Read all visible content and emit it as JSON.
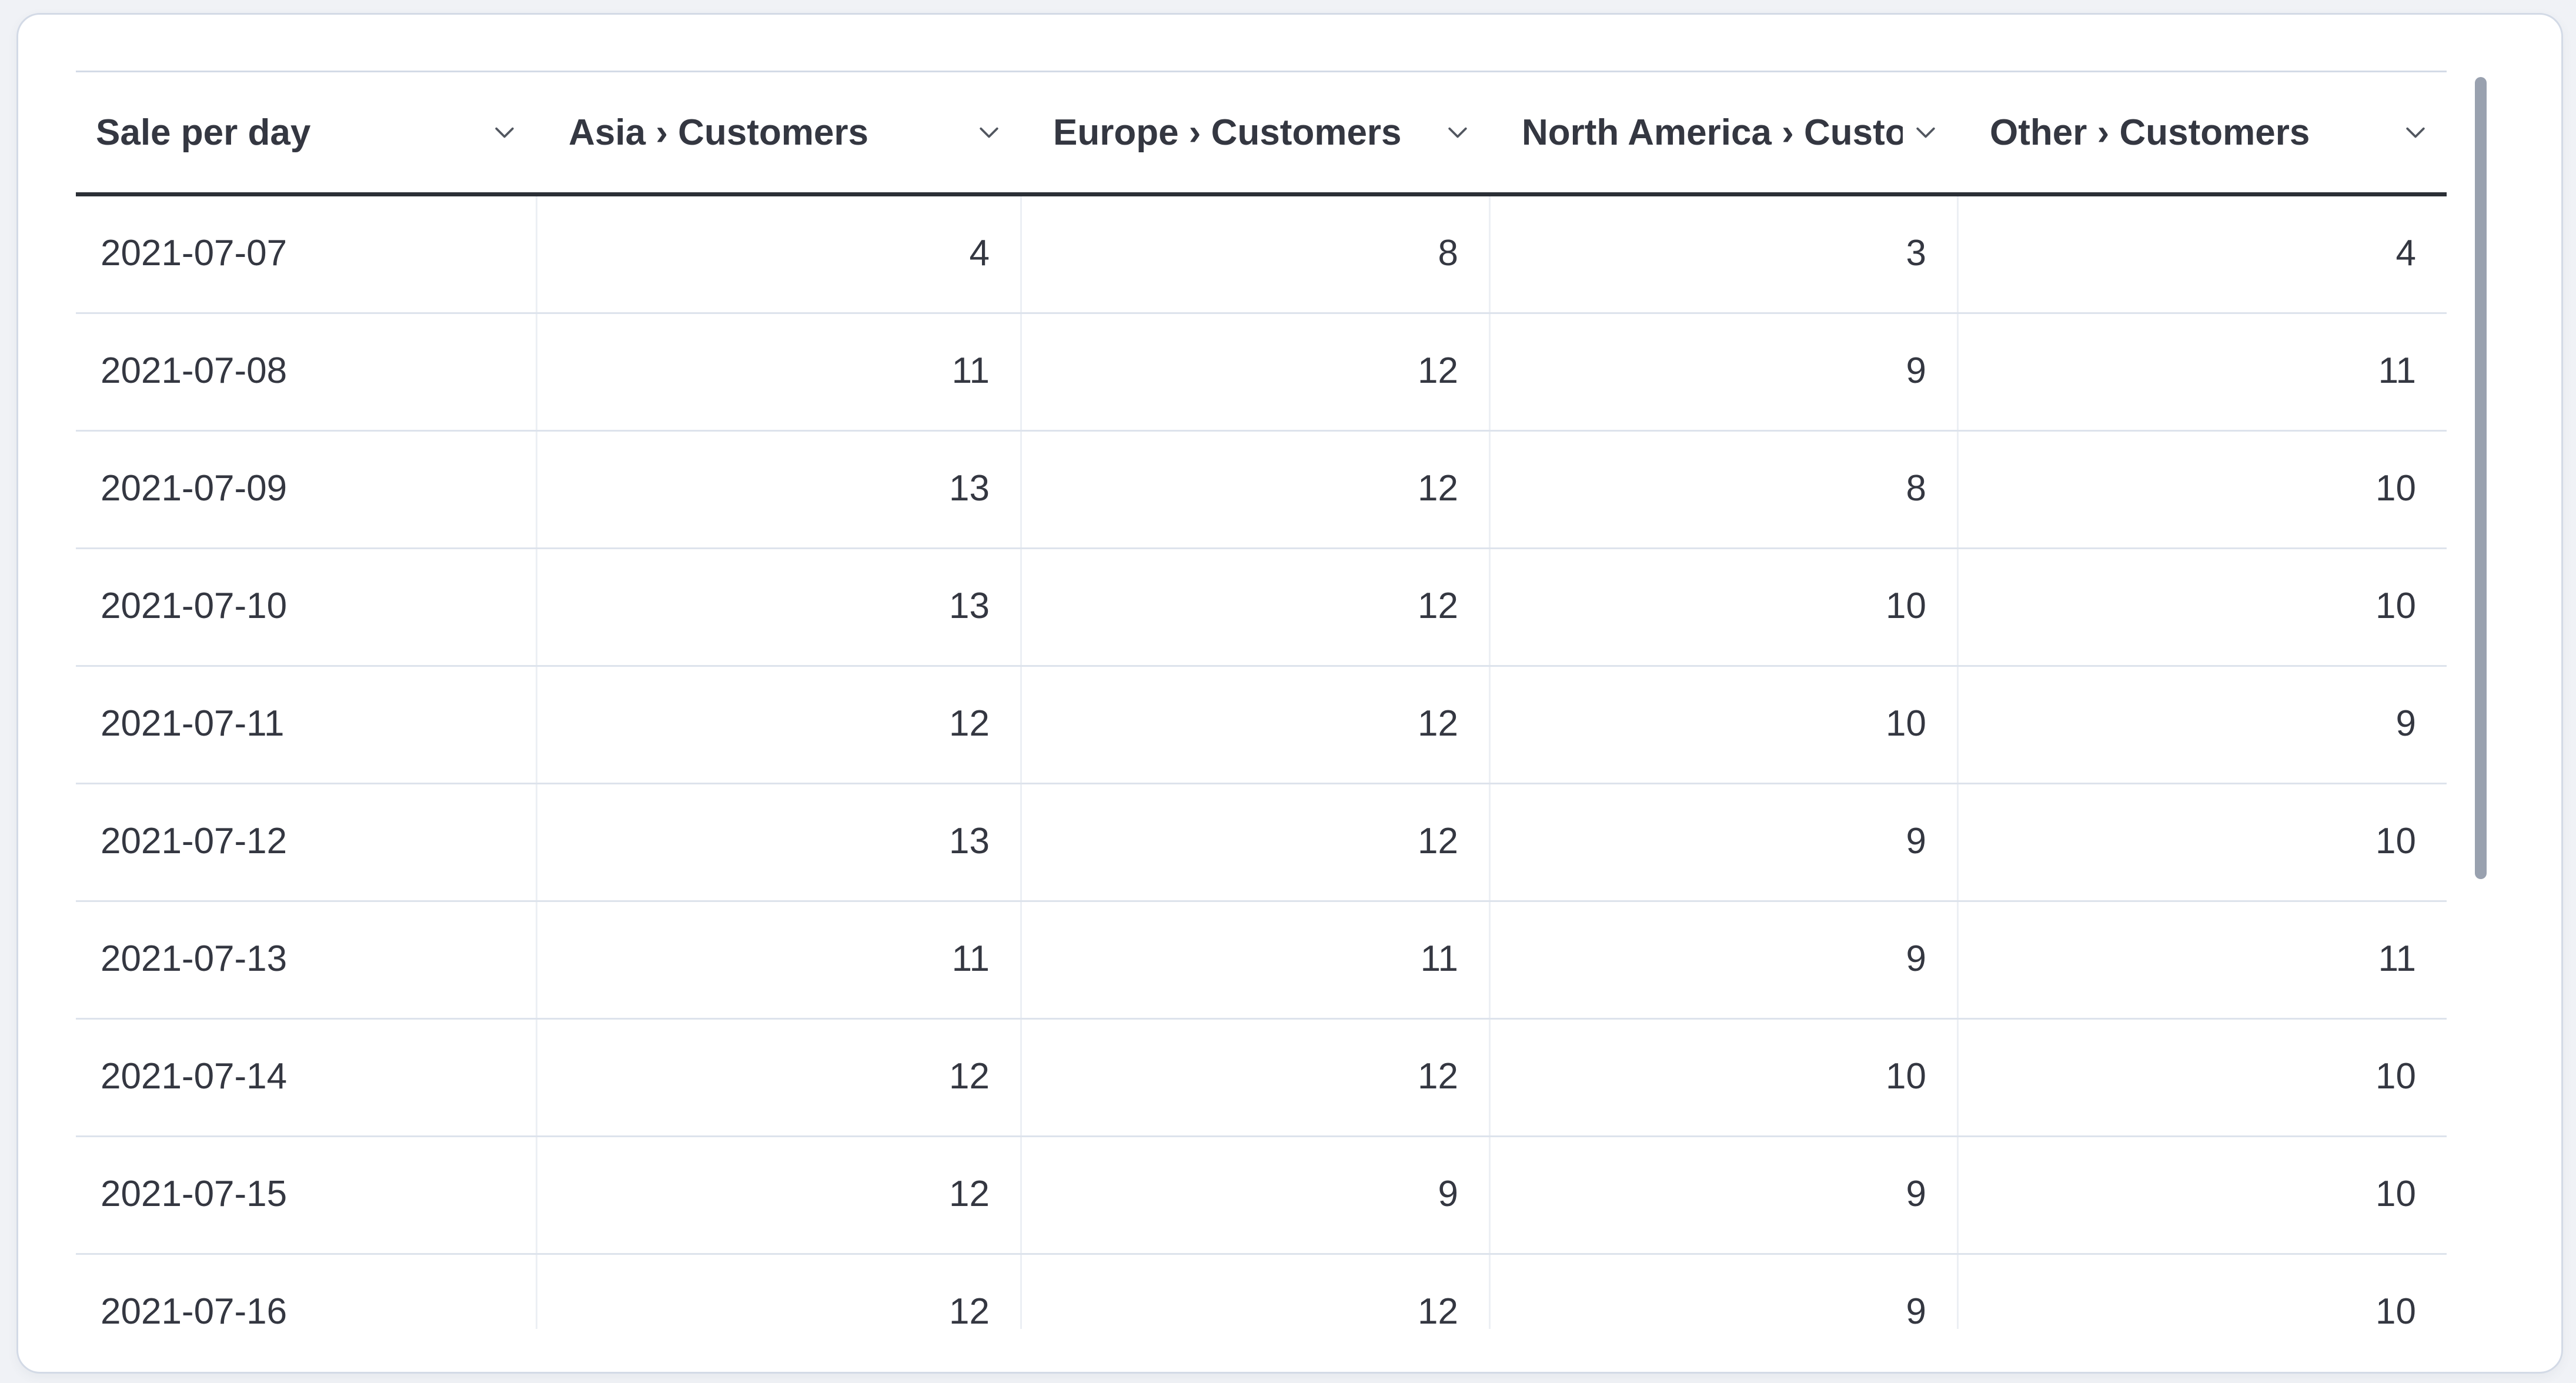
{
  "chart_data": {
    "type": "table",
    "title": "Sale per day",
    "columns": [
      "Sale per day",
      "Asia › Customers",
      "Europe › Customers",
      "North America › Customers",
      "Other › Customers"
    ],
    "rows": [
      [
        "2021-07-07",
        4,
        8,
        3,
        4
      ],
      [
        "2021-07-08",
        11,
        12,
        9,
        11
      ],
      [
        "2021-07-09",
        13,
        12,
        8,
        10
      ],
      [
        "2021-07-10",
        13,
        12,
        10,
        10
      ],
      [
        "2021-07-11",
        12,
        12,
        10,
        9
      ],
      [
        "2021-07-12",
        13,
        12,
        9,
        10
      ],
      [
        "2021-07-13",
        11,
        11,
        9,
        11
      ],
      [
        "2021-07-14",
        12,
        12,
        10,
        10
      ],
      [
        "2021-07-15",
        12,
        9,
        9,
        10
      ],
      [
        "2021-07-16",
        12,
        12,
        9,
        10
      ]
    ],
    "layout": {
      "first_column_align": "left",
      "value_columns_align": "right",
      "header_sort_icon": "chevron-down-icon"
    }
  },
  "icons": {
    "column_action": "chevron-down-icon"
  },
  "colors": {
    "text": "#343741",
    "header_underline": "#2b2f36",
    "row_border": "#dde3ec",
    "column_divider": "#eceff4",
    "card_border": "#d3dae6",
    "page_background": "#f0f2f6",
    "scrollbar": "#99a1af"
  }
}
